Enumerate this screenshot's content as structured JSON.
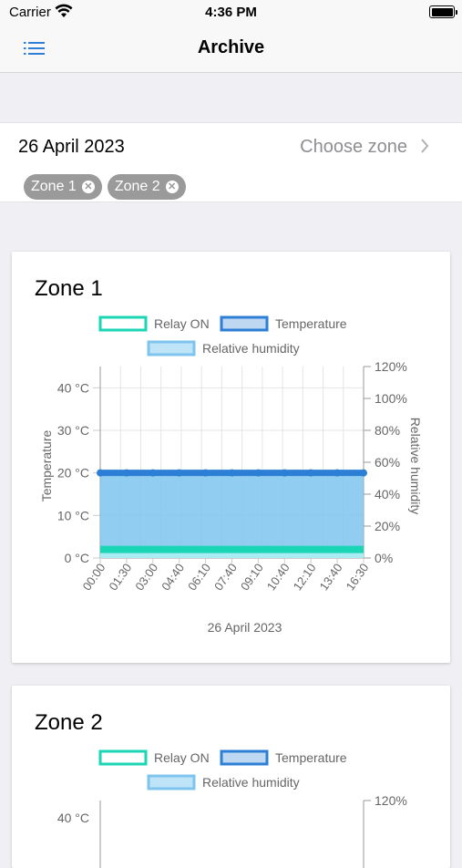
{
  "status_bar": {
    "carrier": "Carrier",
    "time": "4:36 PM"
  },
  "nav": {
    "title": "Archive",
    "menu_icon": "list-icon"
  },
  "header": {
    "date": "26 April 2023",
    "choose_zone": "Choose zone",
    "chips": [
      {
        "label": "Zone 1"
      },
      {
        "label": "Zone 2"
      }
    ]
  },
  "colors": {
    "relay": "#1ad6b4",
    "temperature": "#2d7fd6",
    "humidity": "#7ec4ee",
    "accent": "#2f7fd8"
  },
  "cards": [
    {
      "title": "Zone 1"
    },
    {
      "title": "Zone 2"
    }
  ],
  "chart_data": [
    {
      "type": "line",
      "title": "Zone 1",
      "legend": [
        "Relay ON",
        "Temperature",
        "Relative humidity"
      ],
      "legend_position": "top",
      "x_ticks": [
        "00:00",
        "01:30",
        "03:00",
        "04:40",
        "06:10",
        "07:40",
        "09:10",
        "10:40",
        "12:10",
        "13:40",
        "16:30"
      ],
      "xlabel": "26 April 2023",
      "ylabel": "Temperature",
      "y2label": "Relative humidity",
      "y_ticks": [
        "0 °C",
        "10 °C",
        "20 °C",
        "30 °C",
        "40 °C"
      ],
      "y2_ticks": [
        "0%",
        "20%",
        "40%",
        "60%",
        "80%",
        "100%",
        "120%"
      ],
      "ylim": [
        0,
        45
      ],
      "y2lim": [
        0,
        120
      ],
      "grid": true,
      "series": [
        {
          "name": "Temperature",
          "values": [
            20,
            20,
            20,
            20,
            20,
            20,
            20,
            20,
            20,
            20,
            20
          ],
          "axis": "left"
        },
        {
          "name": "Relative humidity",
          "values": [
            52,
            52,
            52,
            52,
            52,
            52,
            52,
            52,
            52,
            52,
            52
          ],
          "axis": "right"
        },
        {
          "name": "Relay ON",
          "values": [
            2,
            2,
            2,
            2,
            2,
            2,
            2,
            2,
            2,
            2,
            2
          ],
          "axis": "left"
        }
      ]
    },
    {
      "type": "line",
      "title": "Zone 2",
      "legend": [
        "Relay ON",
        "Temperature",
        "Relative humidity"
      ],
      "legend_position": "top",
      "y_ticks": [
        "40 °C"
      ],
      "y2_ticks": [
        "120%"
      ]
    }
  ]
}
